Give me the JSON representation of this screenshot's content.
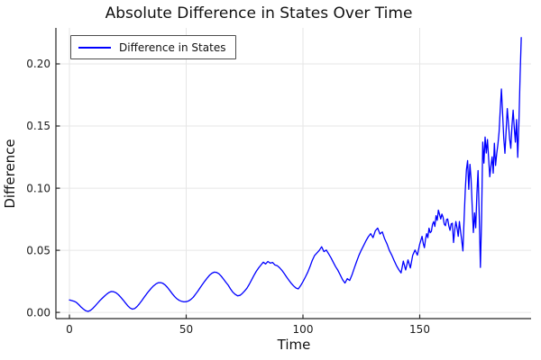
{
  "chart_data": {
    "type": "line",
    "title": "Absolute Difference in States Over Time",
    "xlabel": "Time",
    "ylabel": "Difference",
    "grid": true,
    "legend_position": "top-left",
    "xlim": [
      -5.8,
      197.7
    ],
    "ylim": [
      -0.005,
      0.229
    ],
    "x_ticks": {
      "values": [
        0,
        50,
        100,
        150
      ],
      "labels": [
        "0",
        "50",
        "100",
        "150"
      ]
    },
    "y_ticks": {
      "values": [
        0,
        0.05,
        0.1,
        0.15,
        0.2
      ],
      "labels": [
        "0.00",
        "0.05",
        "0.10",
        "0.15",
        "0.20"
      ]
    },
    "series": [
      {
        "name": "Difference in States",
        "color": "#0000ff",
        "points": [
          [
            0,
            0.01
          ],
          [
            1,
            0.0095
          ],
          [
            2,
            0.009
          ],
          [
            3,
            0.008
          ],
          [
            4,
            0.0062
          ],
          [
            5,
            0.0042
          ],
          [
            6,
            0.0026
          ],
          [
            7,
            0.0013
          ],
          [
            8,
            0.0008
          ],
          [
            9,
            0.0016
          ],
          [
            10,
            0.0032
          ],
          [
            11,
            0.0052
          ],
          [
            12,
            0.0073
          ],
          [
            13,
            0.0094
          ],
          [
            14,
            0.0113
          ],
          [
            15,
            0.0131
          ],
          [
            16,
            0.0148
          ],
          [
            17,
            0.0161
          ],
          [
            18,
            0.0168
          ],
          [
            19,
            0.0166
          ],
          [
            20,
            0.0157
          ],
          [
            21,
            0.0142
          ],
          [
            22,
            0.0122
          ],
          [
            23,
            0.0099
          ],
          [
            24,
            0.0075
          ],
          [
            25,
            0.0052
          ],
          [
            26,
            0.0035
          ],
          [
            27,
            0.0026
          ],
          [
            28,
            0.0032
          ],
          [
            29,
            0.0048
          ],
          [
            30,
            0.007
          ],
          [
            31,
            0.0095
          ],
          [
            32,
            0.0122
          ],
          [
            33,
            0.0148
          ],
          [
            34,
            0.0172
          ],
          [
            35,
            0.0194
          ],
          [
            36,
            0.0213
          ],
          [
            37,
            0.0228
          ],
          [
            38,
            0.0238
          ],
          [
            39,
            0.024
          ],
          [
            40,
            0.0234
          ],
          [
            41,
            0.022
          ],
          [
            42,
            0.02
          ],
          [
            43,
            0.0176
          ],
          [
            44,
            0.0151
          ],
          [
            45,
            0.0128
          ],
          [
            46,
            0.011
          ],
          [
            47,
            0.0097
          ],
          [
            48,
            0.0089
          ],
          [
            49,
            0.0085
          ],
          [
            50,
            0.0086
          ],
          [
            51,
            0.0092
          ],
          [
            52,
            0.0104
          ],
          [
            53,
            0.0122
          ],
          [
            54,
            0.0146
          ],
          [
            55,
            0.0172
          ],
          [
            56,
            0.0199
          ],
          [
            57,
            0.0226
          ],
          [
            58,
            0.0252
          ],
          [
            59,
            0.0277
          ],
          [
            60,
            0.0299
          ],
          [
            61,
            0.0315
          ],
          [
            62,
            0.0324
          ],
          [
            63,
            0.0322
          ],
          [
            64,
            0.0311
          ],
          [
            65,
            0.0292
          ],
          [
            66,
            0.0268
          ],
          [
            67,
            0.0243
          ],
          [
            68,
            0.0219
          ],
          [
            69,
            0.0188
          ],
          [
            70,
            0.0162
          ],
          [
            71,
            0.0145
          ],
          [
            72,
            0.0133
          ],
          [
            73,
            0.0137
          ],
          [
            74,
            0.0152
          ],
          [
            75,
            0.0172
          ],
          [
            76,
            0.0194
          ],
          [
            77,
            0.0225
          ],
          [
            78,
            0.0261
          ],
          [
            79,
            0.0297
          ],
          [
            80,
            0.033
          ],
          [
            81,
            0.0358
          ],
          [
            82,
            0.0381
          ],
          [
            83,
            0.0404
          ],
          [
            84,
            0.039
          ],
          [
            85,
            0.041
          ],
          [
            86,
            0.0396
          ],
          [
            87,
            0.0402
          ],
          [
            88,
            0.0382
          ],
          [
            89,
            0.0376
          ],
          [
            90,
            0.0359
          ],
          [
            91,
            0.0338
          ],
          [
            92,
            0.0312
          ],
          [
            93,
            0.0284
          ],
          [
            94,
            0.0258
          ],
          [
            95,
            0.0234
          ],
          [
            96,
            0.0213
          ],
          [
            97,
            0.0196
          ],
          [
            98,
            0.0189
          ],
          [
            99,
            0.0215
          ],
          [
            100,
            0.0248
          ],
          [
            101,
            0.0283
          ],
          [
            102,
            0.0322
          ],
          [
            103,
            0.0368
          ],
          [
            104,
            0.0418
          ],
          [
            105,
            0.0458
          ],
          [
            106,
            0.0478
          ],
          [
            107,
            0.0499
          ],
          [
            108,
            0.0528
          ],
          [
            109,
            0.0489
          ],
          [
            110,
            0.0502
          ],
          [
            111,
            0.0471
          ],
          [
            112,
            0.044
          ],
          [
            113,
            0.0402
          ],
          [
            114,
            0.0368
          ],
          [
            115,
            0.0338
          ],
          [
            116,
            0.0301
          ],
          [
            117,
            0.0262
          ],
          [
            118,
            0.0236
          ],
          [
            119,
            0.0272
          ],
          [
            120,
            0.0257
          ],
          [
            121,
            0.0302
          ],
          [
            122,
            0.0358
          ],
          [
            123,
            0.0411
          ],
          [
            124,
            0.0459
          ],
          [
            125,
            0.0501
          ],
          [
            126,
            0.0538
          ],
          [
            127,
            0.0577
          ],
          [
            128,
            0.0609
          ],
          [
            129,
            0.0634
          ],
          [
            130,
            0.0601
          ],
          [
            131,
            0.0658
          ],
          [
            132,
            0.0678
          ],
          [
            133,
            0.0631
          ],
          [
            134,
            0.0648
          ],
          [
            135,
            0.0592
          ],
          [
            136,
            0.0551
          ],
          [
            137,
            0.0499
          ],
          [
            138,
            0.0462
          ],
          [
            139,
            0.0419
          ],
          [
            140,
            0.0378
          ],
          [
            141,
            0.0345
          ],
          [
            142,
            0.0318
          ],
          [
            143,
            0.0413
          ],
          [
            144,
            0.0341
          ],
          [
            145,
            0.0422
          ],
          [
            146,
            0.0358
          ],
          [
            147,
            0.0459
          ],
          [
            148,
            0.0502
          ],
          [
            149,
            0.0461
          ],
          [
            150,
            0.0549
          ],
          [
            150.5,
            0.0581
          ],
          [
            151,
            0.0612
          ],
          [
            151.5,
            0.0556
          ],
          [
            152,
            0.0521
          ],
          [
            152.5,
            0.0588
          ],
          [
            153,
            0.0634
          ],
          [
            153.5,
            0.0601
          ],
          [
            154,
            0.0678
          ],
          [
            154.5,
            0.0641
          ],
          [
            155,
            0.0652
          ],
          [
            155.5,
            0.0709
          ],
          [
            156,
            0.0731
          ],
          [
            156.5,
            0.0692
          ],
          [
            157,
            0.0778
          ],
          [
            157.5,
            0.0741
          ],
          [
            158,
            0.0823
          ],
          [
            158.5,
            0.0788
          ],
          [
            159,
            0.0752
          ],
          [
            159.5,
            0.0791
          ],
          [
            160,
            0.0766
          ],
          [
            160.5,
            0.0711
          ],
          [
            161,
            0.0698
          ],
          [
            161.5,
            0.0748
          ],
          [
            162,
            0.0752
          ],
          [
            162.5,
            0.0695
          ],
          [
            163,
            0.0661
          ],
          [
            163.5,
            0.0712
          ],
          [
            164,
            0.0718
          ],
          [
            164.5,
            0.0562
          ],
          [
            165,
            0.0661
          ],
          [
            165.5,
            0.0731
          ],
          [
            166,
            0.0678
          ],
          [
            166.5,
            0.0612
          ],
          [
            167,
            0.0731
          ],
          [
            167.5,
            0.0652
          ],
          [
            168,
            0.0578
          ],
          [
            168.5,
            0.0495
          ],
          [
            169,
            0.0748
          ],
          [
            169.5,
            0.0981
          ],
          [
            170,
            0.1148
          ],
          [
            170.5,
            0.1222
          ],
          [
            171,
            0.0991
          ],
          [
            171.5,
            0.1192
          ],
          [
            172,
            0.1081
          ],
          [
            172.5,
            0.0852
          ],
          [
            173,
            0.0643
          ],
          [
            173.5,
            0.0801
          ],
          [
            174,
            0.0681
          ],
          [
            174.5,
            0.0952
          ],
          [
            175,
            0.1142
          ],
          [
            175.5,
            0.0781
          ],
          [
            176,
            0.0362
          ],
          [
            176.5,
            0.0752
          ],
          [
            177,
            0.1371
          ],
          [
            177.5,
            0.1202
          ],
          [
            178,
            0.1411
          ],
          [
            178.5,
            0.1282
          ],
          [
            179,
            0.1392
          ],
          [
            179.5,
            0.1241
          ],
          [
            180,
            0.1092
          ],
          [
            180.5,
            0.1181
          ],
          [
            181,
            0.1252
          ],
          [
            181.5,
            0.1121
          ],
          [
            182,
            0.1362
          ],
          [
            182.5,
            0.1182
          ],
          [
            183,
            0.1278
          ],
          [
            183.5,
            0.1352
          ],
          [
            184,
            0.1451
          ],
          [
            184.5,
            0.1632
          ],
          [
            185,
            0.1798
          ],
          [
            185.5,
            0.1601
          ],
          [
            186,
            0.1402
          ],
          [
            186.5,
            0.1281
          ],
          [
            187,
            0.1458
          ],
          [
            187.5,
            0.1641
          ],
          [
            188,
            0.1522
          ],
          [
            188.5,
            0.1398
          ],
          [
            189,
            0.1321
          ],
          [
            189.5,
            0.1502
          ],
          [
            190,
            0.1628
          ],
          [
            190.5,
            0.1482
          ],
          [
            191,
            0.1371
          ],
          [
            191.5,
            0.1552
          ],
          [
            192,
            0.1248
          ],
          [
            192.5,
            0.1521
          ],
          [
            193,
            0.1901
          ],
          [
            193.5,
            0.2212
          ]
        ]
      }
    ],
    "colors": {
      "line": "#0000ff",
      "grid": "#e6e6e6",
      "spine": "#262626",
      "text": "#111111"
    }
  }
}
